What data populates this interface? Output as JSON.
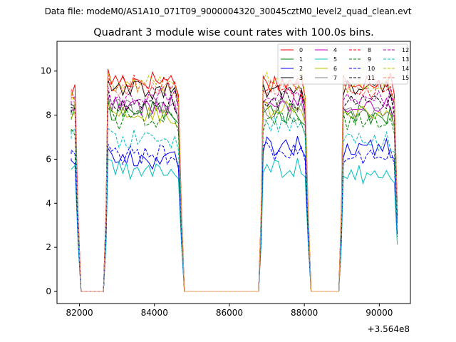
{
  "chart_data": {
    "type": "line",
    "supertitle": "Data file: modeM0/AS1A10_071T09_9000004320_30045cztM0_level2_quad_clean.evt",
    "title": "Quadrant 3 module wise count rates with 100.0s bins.",
    "xlabel": "",
    "ylabel": "",
    "x_offset_label": "+3.564e8",
    "xlim": [
      81400,
      90830
    ],
    "ylim": [
      -0.55,
      11.35
    ],
    "x_ticks": [
      82000,
      84000,
      86000,
      88000,
      90000
    ],
    "x_tick_labels": [
      "82000",
      "84000",
      "86000",
      "88000",
      "90000"
    ],
    "y_ticks": [
      0,
      2,
      4,
      6,
      8,
      10
    ],
    "y_tick_labels": [
      "0",
      "2",
      "4",
      "6",
      "8",
      "10"
    ],
    "legend_position": "top-right",
    "segments": [
      {
        "start": 81780,
        "end": 81880,
        "bins": 2
      },
      {
        "start": 82760,
        "end": 84640,
        "bins": 20
      },
      {
        "start": 86900,
        "end": 88020,
        "bins": 12
      },
      {
        "start": 89040,
        "end": 90400,
        "bins": 14
      }
    ],
    "series": [
      {
        "name": "0",
        "color": "#ff0000",
        "dash": false,
        "levels": [
          9.1,
          9.6,
          9.5,
          9.6
        ]
      },
      {
        "name": "1",
        "color": "#008000",
        "dash": false,
        "levels": [
          8.0,
          8.2,
          8.1,
          8.0
        ]
      },
      {
        "name": "2",
        "color": "#0000ff",
        "dash": false,
        "levels": [
          6.1,
          6.0,
          6.6,
          6.5
        ]
      },
      {
        "name": "3",
        "color": "#000000",
        "dash": false,
        "levels": [
          8.6,
          9.1,
          9.1,
          9.2
        ]
      },
      {
        "name": "4",
        "color": "#bf00bf",
        "dash": false,
        "levels": [
          8.3,
          8.4,
          8.6,
          8.5
        ]
      },
      {
        "name": "5",
        "color": "#00bfbf",
        "dash": false,
        "levels": [
          5.6,
          5.5,
          5.6,
          5.3
        ]
      },
      {
        "name": "6",
        "color": "#bfbf00",
        "dash": false,
        "levels": [
          7.9,
          8.0,
          8.2,
          8.1
        ]
      },
      {
        "name": "7",
        "color": "#808080",
        "dash": false,
        "levels": [
          8.1,
          8.3,
          8.3,
          8.1
        ]
      },
      {
        "name": "8",
        "color": "#ff0000",
        "dash": true,
        "levels": [
          9.0,
          9.4,
          9.2,
          9.2
        ]
      },
      {
        "name": "9",
        "color": "#008000",
        "dash": true,
        "levels": [
          7.3,
          7.8,
          7.7,
          7.7
        ]
      },
      {
        "name": "10",
        "color": "#0000ff",
        "dash": true,
        "levels": [
          6.3,
          6.2,
          6.4,
          6.2
        ]
      },
      {
        "name": "11",
        "color": "#000000",
        "dash": true,
        "levels": [
          8.2,
          8.6,
          8.7,
          8.6
        ]
      },
      {
        "name": "12",
        "color": "#bf00bf",
        "dash": true,
        "levels": [
          8.6,
          8.8,
          8.9,
          8.8
        ]
      },
      {
        "name": "13",
        "color": "#00bfbf",
        "dash": true,
        "levels": [
          7.0,
          6.9,
          7.6,
          6.8
        ]
      },
      {
        "name": "14",
        "color": "#bfbf00",
        "dash": true,
        "levels": [
          8.8,
          9.4,
          9.6,
          9.4
        ]
      },
      {
        "name": "15",
        "color": "#fa8072",
        "dash": true,
        "levels": [
          8.9,
          9.2,
          9.3,
          9.3
        ]
      }
    ]
  }
}
